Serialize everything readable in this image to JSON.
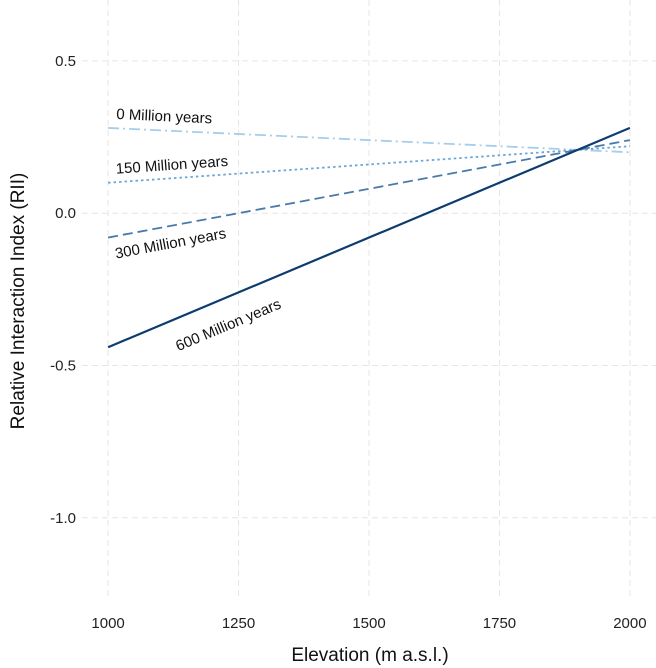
{
  "chart_data": {
    "type": "line",
    "title": "",
    "xlabel": "Elevation (m a.s.l.)",
    "ylabel": "Relative Interaction Index (RII)",
    "xlim": [
      950,
      2050
    ],
    "ylim": [
      -1.27,
      0.7
    ],
    "x_ticks": [
      1000,
      1250,
      1500,
      1750,
      2000
    ],
    "y_ticks": [
      0.5,
      0.0,
      -0.5,
      -1.0
    ],
    "x_tick_labels": [
      "1000",
      "1250",
      "1500",
      "1750",
      "2000"
    ],
    "y_tick_labels": [
      "0.5",
      "0.0",
      "-0.5",
      "-1.0"
    ],
    "grid": true,
    "legend": "none",
    "series": [
      {
        "name": "0 Million years",
        "x": [
          1000,
          2000
        ],
        "y": [
          0.28,
          0.2
        ],
        "color": "#a6cdea",
        "dash": "dashdot"
      },
      {
        "name": "150 Million years",
        "x": [
          1000,
          2000
        ],
        "y": [
          0.1,
          0.22
        ],
        "color": "#6aa6d6",
        "dash": "dotted"
      },
      {
        "name": "300 Million years",
        "x": [
          1000,
          2000
        ],
        "y": [
          -0.08,
          0.24
        ],
        "color": "#4a7aaa",
        "dash": "dashed"
      },
      {
        "name": "600 Million years",
        "x": [
          1000,
          2000
        ],
        "y": [
          -0.44,
          0.28
        ],
        "color": "#0e3c6e",
        "dash": "solid"
      }
    ]
  }
}
